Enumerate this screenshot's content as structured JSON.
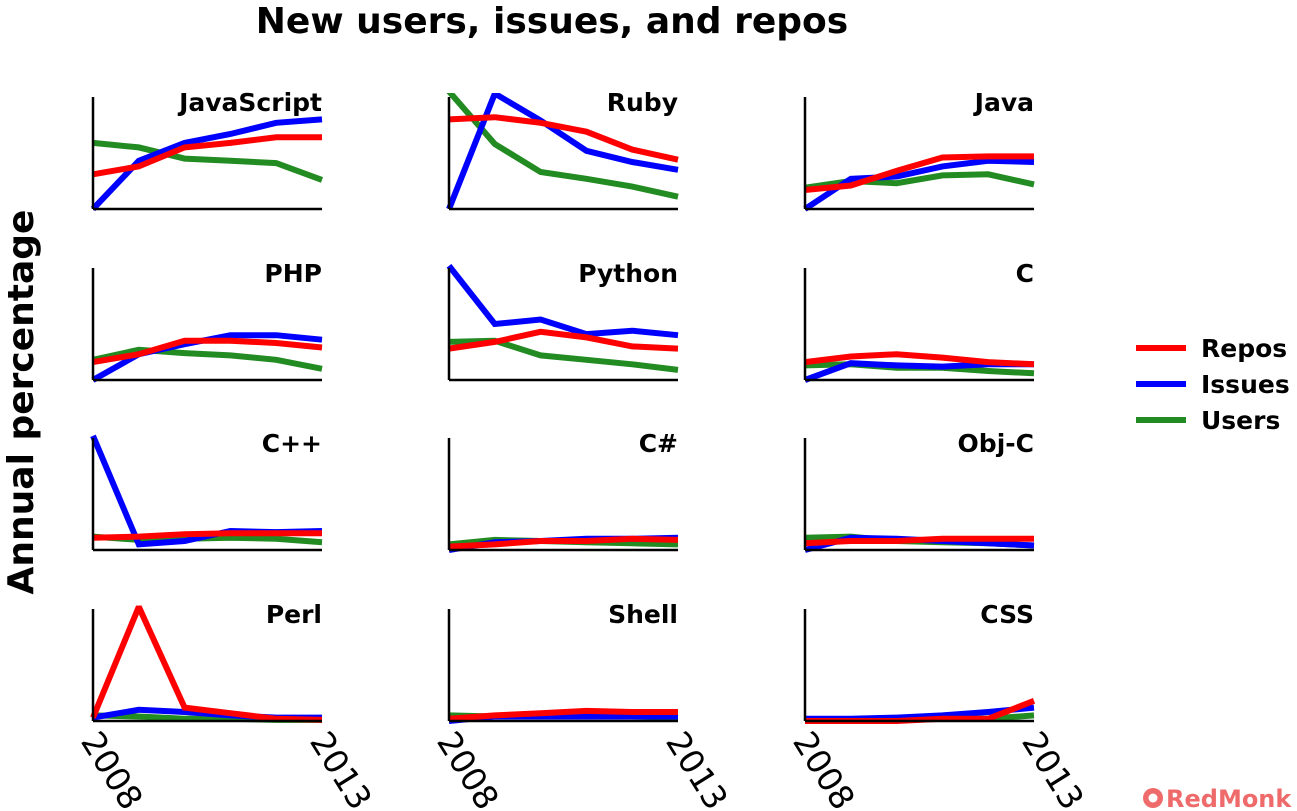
{
  "chart_data": {
    "type": "line",
    "title": "New users, issues, and repos",
    "ylabel": "Annual percentage",
    "xlabel": "",
    "x": [
      2008,
      2009,
      2010,
      2011,
      2012,
      2013
    ],
    "xlim": [
      2008,
      2013
    ],
    "x_ticks": [
      "2008",
      "2013"
    ],
    "legend": {
      "position": "right",
      "entries": [
        {
          "name": "Repos",
          "color": "#ff0000"
        },
        {
          "name": "Issues",
          "color": "#0000ff"
        },
        {
          "name": "Users",
          "color": "#228b22"
        }
      ]
    },
    "grid": false,
    "panels": [
      {
        "name": "JavaScript",
        "series": [
          {
            "name": "Repos",
            "values": [
              31,
              38,
              55,
              59,
              64,
              64
            ]
          },
          {
            "name": "Issues",
            "values": [
              0,
              43,
              59,
              67,
              77,
              80
            ]
          },
          {
            "name": "Users",
            "values": [
              59,
              55,
              45,
              43,
              41,
              26
            ]
          }
        ]
      },
      {
        "name": "Ruby",
        "series": [
          {
            "name": "Repos",
            "values": [
              80,
              82,
              77,
              69,
              53,
              44
            ]
          },
          {
            "name": "Issues",
            "values": [
              0,
              103,
              79,
              52,
              42,
              35
            ]
          },
          {
            "name": "Users",
            "values": [
              105,
              58,
              33,
              27,
              20,
              11
            ]
          }
        ]
      },
      {
        "name": "Java",
        "series": [
          {
            "name": "Repos",
            "values": [
              17,
              21,
              34,
              46,
              47,
              47
            ]
          },
          {
            "name": "Issues",
            "values": [
              0,
              27,
              29,
              38,
              43,
              42
            ]
          },
          {
            "name": "Users",
            "values": [
              19,
              25,
              23,
              30,
              31,
              22
            ]
          }
        ]
      },
      {
        "name": "PHP",
        "series": [
          {
            "name": "Repos",
            "values": [
              16,
              23,
              35,
              35,
              33,
              29
            ]
          },
          {
            "name": "Issues",
            "values": [
              0,
              23,
              32,
              40,
              40,
              36
            ]
          },
          {
            "name": "Users",
            "values": [
              18,
              27,
              24,
              22,
              18,
              10
            ]
          }
        ]
      },
      {
        "name": "Python",
        "series": [
          {
            "name": "Repos",
            "values": [
              28,
              34,
              43,
              38,
              30,
              28
            ]
          },
          {
            "name": "Issues",
            "values": [
              102,
              50,
              54,
              41,
              44,
              40
            ]
          },
          {
            "name": "Users",
            "values": [
              34,
              35,
              22,
              18,
              14,
              9
            ]
          }
        ]
      },
      {
        "name": "C",
        "series": [
          {
            "name": "Repos",
            "values": [
              16,
              21,
              23,
              20,
              16,
              14
            ]
          },
          {
            "name": "Issues",
            "values": [
              0,
              15,
              13,
              12,
              14,
              14
            ]
          },
          {
            "name": "Users",
            "values": [
              13,
              14,
              11,
              11,
              8,
              6
            ]
          }
        ]
      },
      {
        "name": "C++",
        "series": [
          {
            "name": "Repos",
            "values": [
              11,
              12,
              14,
              15,
              15,
              15
            ]
          },
          {
            "name": "Issues",
            "values": [
              102,
              5,
              8,
              17,
              16,
              17
            ]
          },
          {
            "name": "Users",
            "values": [
              12,
              9,
              10,
              11,
              10,
              7
            ]
          }
        ]
      },
      {
        "name": "C#",
        "series": [
          {
            "name": "Repos",
            "values": [
              3,
              5,
              8,
              8,
              10,
              9
            ]
          },
          {
            "name": "Issues",
            "values": [
              0,
              7,
              8,
              10,
              10,
              11
            ]
          },
          {
            "name": "Users",
            "values": [
              5,
              9,
              8,
              7,
              6,
              5
            ]
          }
        ]
      },
      {
        "name": "Obj-C",
        "series": [
          {
            "name": "Repos",
            "values": [
              6,
              8,
              8,
              10,
              10,
              10
            ]
          },
          {
            "name": "Issues",
            "values": [
              0,
              11,
              10,
              8,
              6,
              4
            ]
          },
          {
            "name": "Users",
            "values": [
              11,
              12,
              8,
              7,
              6,
              4
            ]
          }
        ]
      },
      {
        "name": "Perl",
        "series": [
          {
            "name": "Repos",
            "values": [
              3,
              102,
              12,
              7,
              2,
              1
            ]
          },
          {
            "name": "Issues",
            "values": [
              3,
              10,
              8,
              5,
              3,
              3
            ]
          },
          {
            "name": "Users",
            "values": [
              5,
              4,
              2,
              2,
              1,
              1
            ]
          }
        ]
      },
      {
        "name": "Shell",
        "series": [
          {
            "name": "Repos",
            "values": [
              2,
              5,
              7,
              9,
              8,
              8
            ]
          },
          {
            "name": "Issues",
            "values": [
              0,
              4,
              4,
              4,
              4,
              4
            ]
          },
          {
            "name": "Users",
            "values": [
              5,
              4,
              4,
              4,
              4,
              3
            ]
          }
        ]
      },
      {
        "name": "CSS",
        "series": [
          {
            "name": "Repos",
            "values": [
              0,
              0,
              0,
              2,
              2,
              18
            ]
          },
          {
            "name": "Issues",
            "values": [
              2,
              2,
              3,
              5,
              8,
              12
            ]
          },
          {
            "name": "Users",
            "values": [
              0,
              0,
              1,
              2,
              2,
              5
            ]
          }
        ]
      }
    ],
    "ylim": [
      0,
      100
    ]
  },
  "watermark": "RedMonk"
}
